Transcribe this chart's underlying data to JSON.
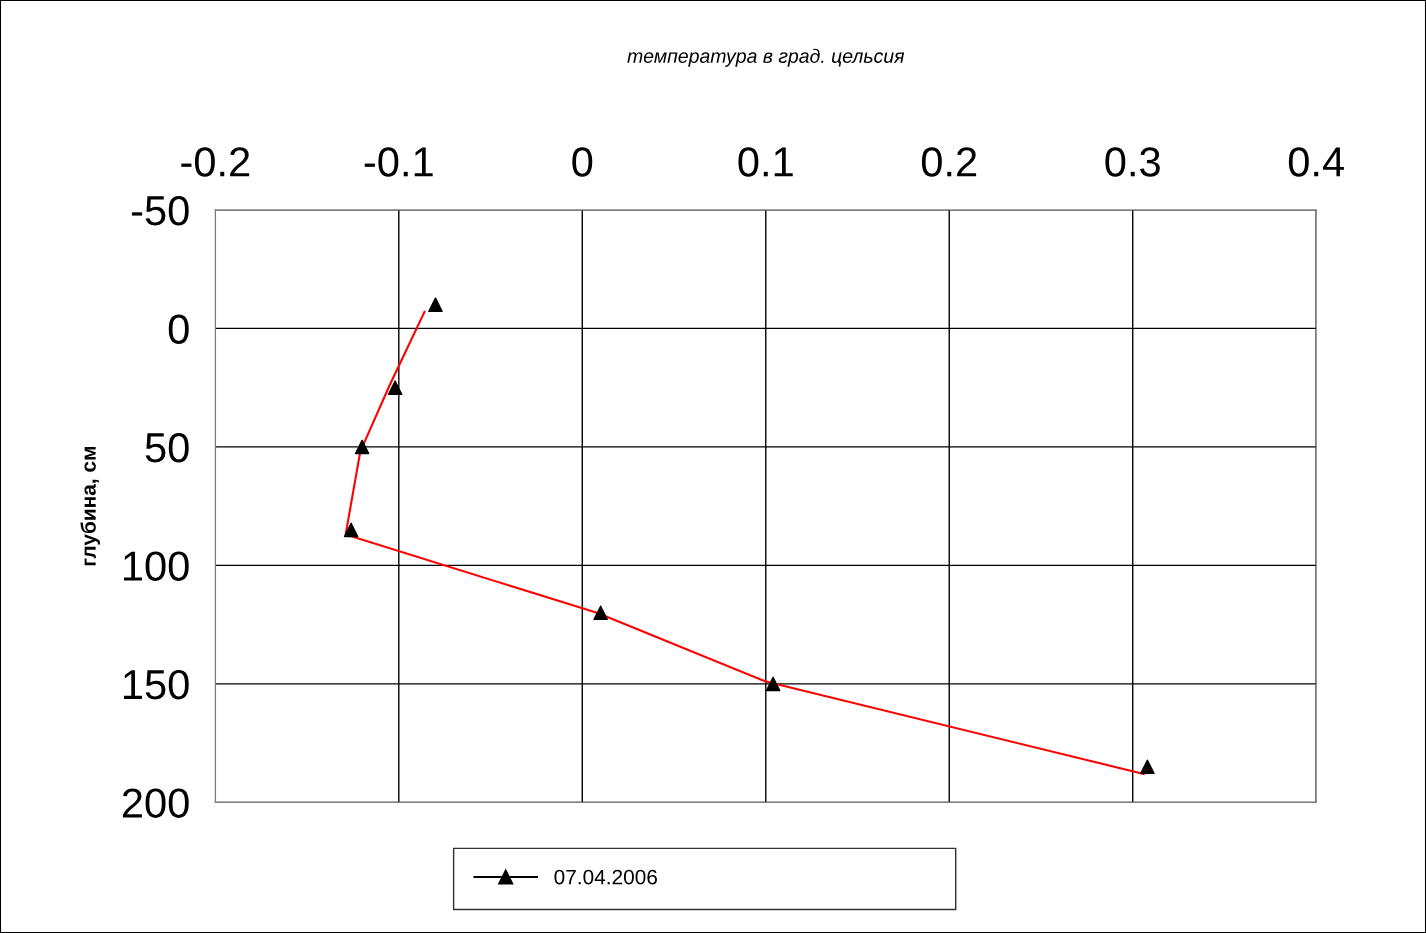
{
  "chart_data": {
    "type": "scatter",
    "xlabel": "температура в град. цельсия",
    "ylabel": "глубина, см",
    "xlim": [
      -0.2,
      0.4
    ],
    "xticks": [
      -0.2,
      -0.1,
      0,
      0.1,
      0.2,
      0.3,
      0.4
    ],
    "ylim": [
      200,
      -50
    ],
    "yticks": [
      -50,
      0,
      50,
      100,
      150,
      200
    ],
    "grid": true,
    "legend": "bottom",
    "series": [
      {
        "name": "07.04.2006",
        "marker": "triangle",
        "color": "#000000",
        "x": [
          -0.08,
          -0.102,
          -0.12,
          -0.126,
          0.01,
          0.104,
          0.308
        ],
        "values": [
          -10,
          25,
          50,
          85,
          120,
          150,
          185
        ]
      },
      {
        "type": "line",
        "marker": "none",
        "color": "#ff0000",
        "line_style": "solid",
        "x": [
          -0.086,
          -0.105,
          -0.121,
          -0.129,
          0.008,
          0.1,
          0.306
        ],
        "values": [
          -7,
          24,
          52,
          87,
          120,
          149,
          188
        ]
      }
    ]
  }
}
